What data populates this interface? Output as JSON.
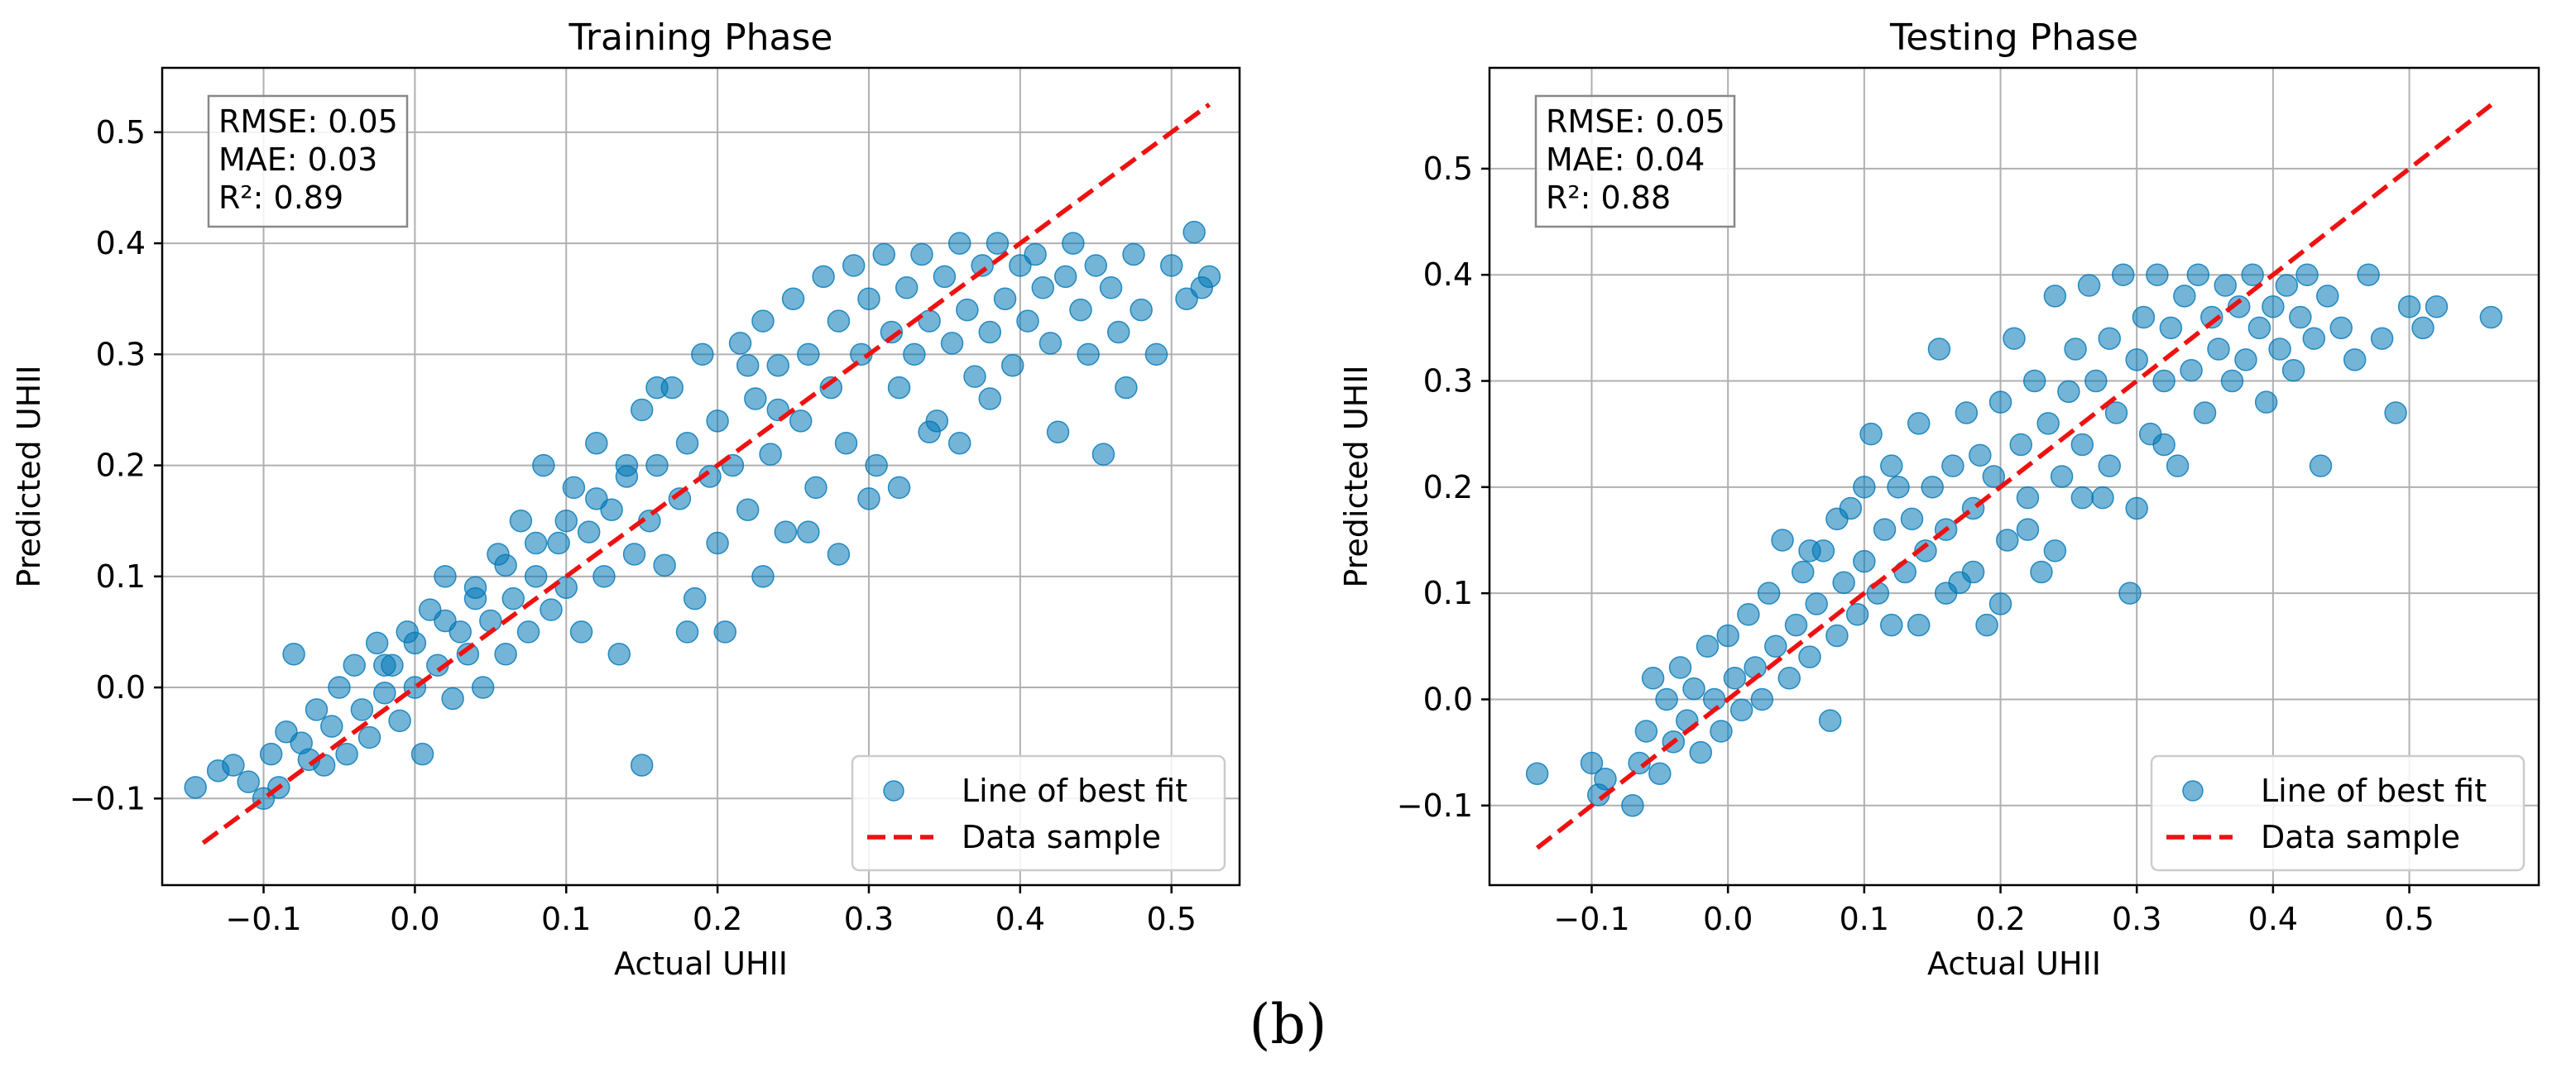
{
  "figure": {
    "panel_label": "(b)"
  },
  "chart_data": [
    {
      "type": "scatter",
      "title": "Training Phase",
      "xlabel": "Actual UHII",
      "ylabel": "Predicted UHII",
      "xlim": [
        -0.167,
        0.545
      ],
      "ylim": [
        -0.178,
        0.558
      ],
      "xticks": [
        -0.1,
        0.0,
        0.1,
        0.2,
        0.3,
        0.4,
        0.5
      ],
      "xtick_labels": [
        "−0.1",
        "0.0",
        "0.1",
        "0.2",
        "0.3",
        "0.4",
        "0.5"
      ],
      "yticks": [
        -0.1,
        0.0,
        0.1,
        0.2,
        0.3,
        0.4,
        0.5
      ],
      "ytick_labels": [
        "−0.1",
        "0.0",
        "0.1",
        "0.2",
        "0.3",
        "0.4",
        "0.5"
      ],
      "grid": true,
      "stats": [
        "RMSE: 0.05",
        "MAE: 0.03",
        "R²: 0.89"
      ],
      "legend_position": "lower-right",
      "scatter_series": {
        "name": "Line of best fit",
        "color": "#0077b6",
        "alpha": 0.55,
        "points": [
          [
            -0.145,
            -0.09
          ],
          [
            -0.13,
            -0.075
          ],
          [
            -0.12,
            -0.07
          ],
          [
            -0.11,
            -0.085
          ],
          [
            -0.1,
            -0.1
          ],
          [
            -0.095,
            -0.06
          ],
          [
            -0.09,
            -0.09
          ],
          [
            -0.085,
            -0.04
          ],
          [
            -0.08,
            0.03
          ],
          [
            -0.075,
            -0.05
          ],
          [
            -0.07,
            -0.065
          ],
          [
            -0.065,
            -0.02
          ],
          [
            -0.06,
            -0.07
          ],
          [
            -0.055,
            -0.035
          ],
          [
            -0.05,
            0.0
          ],
          [
            -0.045,
            -0.06
          ],
          [
            -0.04,
            0.02
          ],
          [
            -0.035,
            -0.02
          ],
          [
            -0.03,
            -0.045
          ],
          [
            -0.025,
            0.04
          ],
          [
            -0.02,
            -0.005
          ],
          [
            -0.015,
            0.02
          ],
          [
            -0.01,
            -0.03
          ],
          [
            -0.005,
            0.05
          ],
          [
            0.0,
            0.0
          ],
          [
            0.005,
            -0.06
          ],
          [
            0.01,
            0.07
          ],
          [
            0.015,
            0.02
          ],
          [
            0.02,
            0.1
          ],
          [
            0.025,
            -0.01
          ],
          [
            0.03,
            0.05
          ],
          [
            0.035,
            0.03
          ],
          [
            0.04,
            0.09
          ],
          [
            0.045,
            0.0
          ],
          [
            0.05,
            0.06
          ],
          [
            0.055,
            0.12
          ],
          [
            0.06,
            0.03
          ],
          [
            0.065,
            0.08
          ],
          [
            0.07,
            0.15
          ],
          [
            0.075,
            0.05
          ],
          [
            0.08,
            0.1
          ],
          [
            0.085,
            0.2
          ],
          [
            0.09,
            0.07
          ],
          [
            0.095,
            0.13
          ],
          [
            0.1,
            0.09
          ],
          [
            0.105,
            0.18
          ],
          [
            0.11,
            0.05
          ],
          [
            0.115,
            0.14
          ],
          [
            0.12,
            0.22
          ],
          [
            0.125,
            0.1
          ],
          [
            0.13,
            0.16
          ],
          [
            0.135,
            0.03
          ],
          [
            0.14,
            0.19
          ],
          [
            0.145,
            0.12
          ],
          [
            0.15,
            0.25
          ],
          [
            0.15,
            -0.07
          ],
          [
            0.155,
            0.15
          ],
          [
            0.16,
            0.2
          ],
          [
            0.165,
            0.11
          ],
          [
            0.17,
            0.27
          ],
          [
            0.175,
            0.17
          ],
          [
            0.18,
            0.22
          ],
          [
            0.185,
            0.08
          ],
          [
            0.19,
            0.3
          ],
          [
            0.195,
            0.19
          ],
          [
            0.2,
            0.24
          ],
          [
            0.205,
            0.05
          ],
          [
            0.21,
            0.2
          ],
          [
            0.215,
            0.31
          ],
          [
            0.22,
            0.16
          ],
          [
            0.225,
            0.26
          ],
          [
            0.23,
            0.33
          ],
          [
            0.235,
            0.21
          ],
          [
            0.24,
            0.29
          ],
          [
            0.245,
            0.14
          ],
          [
            0.25,
            0.35
          ],
          [
            0.255,
            0.24
          ],
          [
            0.26,
            0.3
          ],
          [
            0.265,
            0.18
          ],
          [
            0.27,
            0.37
          ],
          [
            0.275,
            0.27
          ],
          [
            0.28,
            0.33
          ],
          [
            0.285,
            0.22
          ],
          [
            0.29,
            0.38
          ],
          [
            0.295,
            0.3
          ],
          [
            0.3,
            0.35
          ],
          [
            0.305,
            0.2
          ],
          [
            0.31,
            0.39
          ],
          [
            0.315,
            0.32
          ],
          [
            0.32,
            0.27
          ],
          [
            0.325,
            0.36
          ],
          [
            0.33,
            0.3
          ],
          [
            0.335,
            0.39
          ],
          [
            0.34,
            0.33
          ],
          [
            0.345,
            0.24
          ],
          [
            0.35,
            0.37
          ],
          [
            0.355,
            0.31
          ],
          [
            0.36,
            0.4
          ],
          [
            0.365,
            0.34
          ],
          [
            0.37,
            0.28
          ],
          [
            0.375,
            0.38
          ],
          [
            0.38,
            0.32
          ],
          [
            0.385,
            0.4
          ],
          [
            0.39,
            0.35
          ],
          [
            0.395,
            0.29
          ],
          [
            0.4,
            0.38
          ],
          [
            0.405,
            0.33
          ],
          [
            0.41,
            0.39
          ],
          [
            0.415,
            0.36
          ],
          [
            0.42,
            0.31
          ],
          [
            0.425,
            0.23
          ],
          [
            0.43,
            0.37
          ],
          [
            0.435,
            0.4
          ],
          [
            0.44,
            0.34
          ],
          [
            0.445,
            0.3
          ],
          [
            0.45,
            0.38
          ],
          [
            0.455,
            0.21
          ],
          [
            0.46,
            0.36
          ],
          [
            0.465,
            0.32
          ],
          [
            0.47,
            0.27
          ],
          [
            0.475,
            0.39
          ],
          [
            0.48,
            0.34
          ],
          [
            0.49,
            0.3
          ],
          [
            0.5,
            0.38
          ],
          [
            0.51,
            0.35
          ],
          [
            0.515,
            0.41
          ],
          [
            0.52,
            0.36
          ],
          [
            0.525,
            0.37
          ],
          [
            0.23,
            0.1
          ],
          [
            0.26,
            0.14
          ],
          [
            0.28,
            0.12
          ],
          [
            0.3,
            0.17
          ],
          [
            0.32,
            0.18
          ],
          [
            0.34,
            0.23
          ],
          [
            0.36,
            0.22
          ],
          [
            0.38,
            0.26
          ],
          [
            0.2,
            0.13
          ],
          [
            0.18,
            0.05
          ],
          [
            0.16,
            0.27
          ],
          [
            0.14,
            0.2
          ],
          [
            0.12,
            0.17
          ],
          [
            0.1,
            0.15
          ],
          [
            0.08,
            0.13
          ],
          [
            0.06,
            0.11
          ],
          [
            0.04,
            0.08
          ],
          [
            0.02,
            0.06
          ],
          [
            0.0,
            0.04
          ],
          [
            -0.02,
            0.02
          ],
          [
            0.22,
            0.29
          ],
          [
            0.24,
            0.25
          ]
        ]
      },
      "line_series": {
        "name": "Data sample",
        "color": "#ee1111",
        "x": [
          -0.14,
          0.525
        ],
        "y": [
          -0.14,
          0.525
        ]
      }
    },
    {
      "type": "scatter",
      "title": "Testing Phase",
      "xlabel": "Actual UHII",
      "ylabel": "Predicted UHII",
      "xlim": [
        -0.175,
        0.595
      ],
      "ylim": [
        -0.175,
        0.595
      ],
      "xticks": [
        -0.1,
        0.0,
        0.1,
        0.2,
        0.3,
        0.4,
        0.5
      ],
      "xtick_labels": [
        "−0.1",
        "0.0",
        "0.1",
        "0.2",
        "0.3",
        "0.4",
        "0.5"
      ],
      "yticks": [
        -0.1,
        0.0,
        0.1,
        0.2,
        0.3,
        0.4,
        0.5
      ],
      "ytick_labels": [
        "−0.1",
        "0.0",
        "0.1",
        "0.2",
        "0.3",
        "0.4",
        "0.5"
      ],
      "grid": true,
      "stats": [
        "RMSE: 0.05",
        "MAE: 0.04",
        "R²: 0.88"
      ],
      "legend_position": "lower-right",
      "scatter_series": {
        "name": "Line of best fit",
        "color": "#0077b6",
        "alpha": 0.55,
        "points": [
          [
            -0.14,
            -0.07
          ],
          [
            -0.1,
            -0.06
          ],
          [
            -0.095,
            -0.09
          ],
          [
            -0.09,
            -0.075
          ],
          [
            -0.07,
            -0.1
          ],
          [
            -0.065,
            -0.06
          ],
          [
            -0.06,
            -0.03
          ],
          [
            -0.055,
            0.02
          ],
          [
            -0.05,
            -0.07
          ],
          [
            -0.045,
            0.0
          ],
          [
            -0.04,
            -0.04
          ],
          [
            -0.035,
            0.03
          ],
          [
            -0.03,
            -0.02
          ],
          [
            -0.025,
            0.01
          ],
          [
            -0.02,
            -0.05
          ],
          [
            -0.015,
            0.05
          ],
          [
            -0.01,
            0.0
          ],
          [
            -0.005,
            -0.03
          ],
          [
            0.0,
            0.06
          ],
          [
            0.005,
            0.02
          ],
          [
            0.01,
            -0.01
          ],
          [
            0.015,
            0.08
          ],
          [
            0.02,
            0.03
          ],
          [
            0.025,
            0.0
          ],
          [
            0.03,
            0.1
          ],
          [
            0.035,
            0.05
          ],
          [
            0.04,
            0.15
          ],
          [
            0.045,
            0.02
          ],
          [
            0.05,
            0.07
          ],
          [
            0.055,
            0.12
          ],
          [
            0.06,
            0.04
          ],
          [
            0.065,
            0.09
          ],
          [
            0.07,
            0.14
          ],
          [
            0.075,
            -0.02
          ],
          [
            0.08,
            0.06
          ],
          [
            0.085,
            0.11
          ],
          [
            0.09,
            0.18
          ],
          [
            0.095,
            0.08
          ],
          [
            0.1,
            0.13
          ],
          [
            0.105,
            0.25
          ],
          [
            0.11,
            0.1
          ],
          [
            0.115,
            0.16
          ],
          [
            0.12,
            0.07
          ],
          [
            0.125,
            0.2
          ],
          [
            0.13,
            0.12
          ],
          [
            0.135,
            0.17
          ],
          [
            0.14,
            0.26
          ],
          [
            0.145,
            0.14
          ],
          [
            0.15,
            0.2
          ],
          [
            0.155,
            0.33
          ],
          [
            0.16,
            0.16
          ],
          [
            0.165,
            0.22
          ],
          [
            0.17,
            0.11
          ],
          [
            0.175,
            0.27
          ],
          [
            0.18,
            0.18
          ],
          [
            0.185,
            0.23
          ],
          [
            0.19,
            0.07
          ],
          [
            0.195,
            0.21
          ],
          [
            0.2,
            0.28
          ],
          [
            0.205,
            0.15
          ],
          [
            0.21,
            0.34
          ],
          [
            0.215,
            0.24
          ],
          [
            0.22,
            0.19
          ],
          [
            0.225,
            0.3
          ],
          [
            0.23,
            0.12
          ],
          [
            0.235,
            0.26
          ],
          [
            0.24,
            0.38
          ],
          [
            0.245,
            0.21
          ],
          [
            0.25,
            0.29
          ],
          [
            0.255,
            0.33
          ],
          [
            0.26,
            0.24
          ],
          [
            0.265,
            0.39
          ],
          [
            0.27,
            0.3
          ],
          [
            0.275,
            0.19
          ],
          [
            0.28,
            0.34
          ],
          [
            0.285,
            0.27
          ],
          [
            0.29,
            0.4
          ],
          [
            0.295,
            0.1
          ],
          [
            0.3,
            0.32
          ],
          [
            0.305,
            0.36
          ],
          [
            0.31,
            0.25
          ],
          [
            0.315,
            0.4
          ],
          [
            0.32,
            0.3
          ],
          [
            0.325,
            0.35
          ],
          [
            0.33,
            0.22
          ],
          [
            0.335,
            0.38
          ],
          [
            0.34,
            0.31
          ],
          [
            0.345,
            0.4
          ],
          [
            0.35,
            0.27
          ],
          [
            0.355,
            0.36
          ],
          [
            0.36,
            0.33
          ],
          [
            0.365,
            0.39
          ],
          [
            0.37,
            0.3
          ],
          [
            0.375,
            0.37
          ],
          [
            0.38,
            0.32
          ],
          [
            0.385,
            0.4
          ],
          [
            0.39,
            0.35
          ],
          [
            0.395,
            0.28
          ],
          [
            0.4,
            0.37
          ],
          [
            0.405,
            0.33
          ],
          [
            0.41,
            0.39
          ],
          [
            0.415,
            0.31
          ],
          [
            0.42,
            0.36
          ],
          [
            0.425,
            0.4
          ],
          [
            0.43,
            0.34
          ],
          [
            0.435,
            0.22
          ],
          [
            0.44,
            0.38
          ],
          [
            0.45,
            0.35
          ],
          [
            0.46,
            0.32
          ],
          [
            0.47,
            0.4
          ],
          [
            0.48,
            0.34
          ],
          [
            0.49,
            0.27
          ],
          [
            0.5,
            0.37
          ],
          [
            0.51,
            0.35
          ],
          [
            0.52,
            0.37
          ],
          [
            0.56,
            0.36
          ],
          [
            0.14,
            0.07
          ],
          [
            0.16,
            0.1
          ],
          [
            0.18,
            0.12
          ],
          [
            0.2,
            0.09
          ],
          [
            0.22,
            0.16
          ],
          [
            0.24,
            0.14
          ],
          [
            0.26,
            0.19
          ],
          [
            0.28,
            0.22
          ],
          [
            0.3,
            0.18
          ],
          [
            0.32,
            0.24
          ],
          [
            0.06,
            0.14
          ],
          [
            0.08,
            0.17
          ],
          [
            0.1,
            0.2
          ],
          [
            0.12,
            0.22
          ]
        ]
      },
      "line_series": {
        "name": "Data sample",
        "color": "#ee1111",
        "x": [
          -0.14,
          0.56
        ],
        "y": [
          -0.14,
          0.56
        ]
      }
    }
  ]
}
